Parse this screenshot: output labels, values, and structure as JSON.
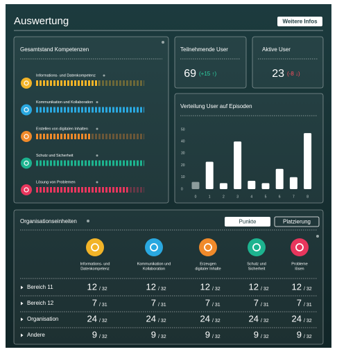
{
  "header": {
    "title": "Auswertung",
    "button": "Weitere Infos"
  },
  "competencies": {
    "title": "Gesamtstand Kompetenzen",
    "items": [
      {
        "label": "Informations- und Datenkompetenz",
        "progress": 58,
        "color": "#f2b428"
      },
      {
        "label": "Kommunikation und Kollaboration",
        "progress": 100,
        "color": "#2aa8e0"
      },
      {
        "label": "Erstellen von digitalen Inhalten",
        "progress": 50,
        "color": "#f08a2a"
      },
      {
        "label": "Schutz und Sicherheit",
        "progress": 100,
        "color": "#1db38f"
      },
      {
        "label": "Lösung von Problemen",
        "progress": 85,
        "color": "#e8365d"
      }
    ]
  },
  "participants": {
    "title": "Teilnehmende User",
    "value": 69,
    "change": "(+15 ↑)",
    "change_color": "#2fd3a6"
  },
  "active": {
    "title": "Aktive User",
    "value": 23,
    "change": "(-8 ↓)",
    "change_color": "#ff4d5e"
  },
  "episodes": {
    "type": "bar",
    "title": "Verteilung User auf Episoden",
    "categories": [
      "0",
      "1",
      "2",
      "3",
      "4",
      "5",
      "6",
      "7",
      "8"
    ],
    "values": [
      6,
      23,
      5,
      40,
      7,
      5,
      17,
      10,
      47
    ],
    "colors": [
      "#8c9c9c",
      "#ffffff",
      "#ffffff",
      "#ffffff",
      "#ffffff",
      "#ffffff",
      "#ffffff",
      "#ffffff",
      "#ffffff"
    ],
    "ylim": [
      0,
      50
    ],
    "yticks": [
      0,
      10,
      20,
      30,
      40,
      50
    ]
  },
  "org": {
    "title": "Organisationseinheiten",
    "tabs": [
      "Punkte",
      "Platzierung"
    ],
    "columns": [
      [
        "Informations- und",
        "Datenkompetenz"
      ],
      [
        "Kommunikation und",
        "Kollaboration"
      ],
      [
        "Erzeugen",
        "digitaler Inhalte"
      ],
      [
        "Schutz und",
        "Sicherheit"
      ],
      [
        "Probleme",
        "lösen"
      ]
    ],
    "rows": [
      {
        "name": "Bereich 11",
        "cells": [
          {
            "value": 12,
            "of": "/ 32"
          },
          {
            "value": 12,
            "of": "/ 32"
          },
          {
            "value": 12,
            "of": "/ 32"
          },
          {
            "value": 12,
            "of": "/ 32"
          },
          {
            "value": 12,
            "of": "/ 32"
          }
        ]
      },
      {
        "name": "Bereich 12",
        "cells": [
          {
            "value": 7,
            "of": "/ 31"
          },
          {
            "value": 7,
            "of": "/ 31"
          },
          {
            "value": 7,
            "of": "/ 31"
          },
          {
            "value": 7,
            "of": "/ 31"
          },
          {
            "value": 7,
            "of": "/ 31"
          }
        ]
      },
      {
        "name": "Organisation",
        "cells": [
          {
            "value": 24,
            "of": "/ 32"
          },
          {
            "value": 24,
            "of": "/ 32"
          },
          {
            "value": 24,
            "of": "/ 32"
          },
          {
            "value": 24,
            "of": "/ 32"
          },
          {
            "value": 24,
            "of": "/ 32"
          }
        ]
      },
      {
        "name": "Andere",
        "cells": [
          {
            "value": 9,
            "of": "/ 32"
          },
          {
            "value": 9,
            "of": "/ 32"
          },
          {
            "value": 9,
            "of": "/ 32"
          },
          {
            "value": 9,
            "of": "/ 32"
          },
          {
            "value": 9,
            "of": "/ 32"
          }
        ]
      }
    ]
  }
}
